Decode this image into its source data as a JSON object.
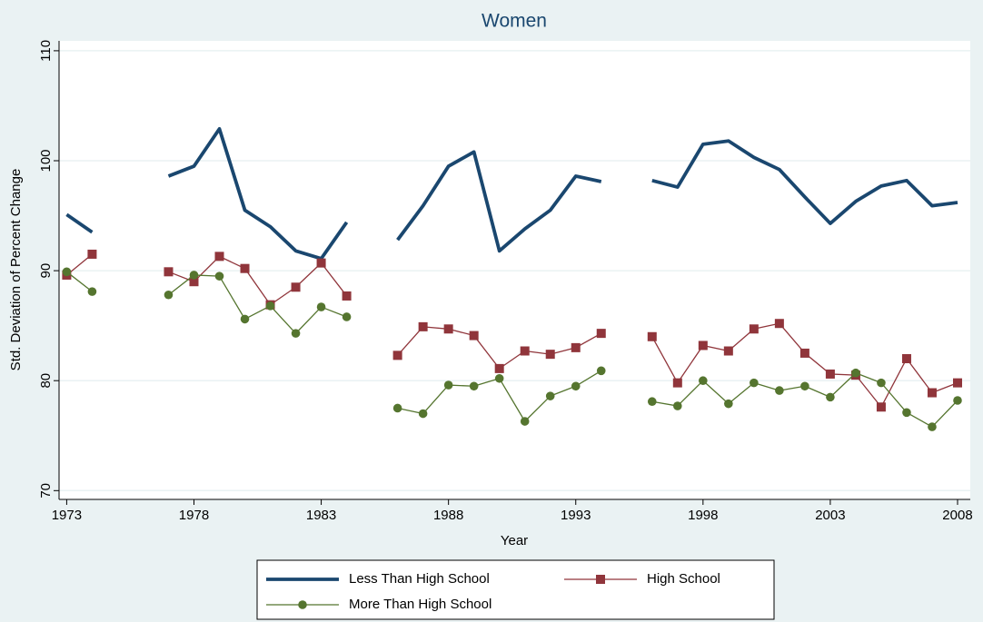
{
  "chart_data": {
    "type": "line",
    "title": "Women",
    "x_label": "Year",
    "y_label": "Std. Deviation of Percent Change",
    "x": [
      1973,
      1974,
      1975,
      1976,
      1977,
      1978,
      1979,
      1980,
      1981,
      1982,
      1983,
      1984,
      1985,
      1986,
      1987,
      1988,
      1989,
      1990,
      1991,
      1992,
      1993,
      1994,
      1995,
      1996,
      1997,
      1998,
      1999,
      2000,
      2001,
      2002,
      2003,
      2004,
      2005,
      2006,
      2007,
      2008
    ],
    "series": [
      {
        "name": "Less Than High School",
        "color": "#1a476f",
        "marker": "none",
        "values": [
          95.1,
          93.5,
          null,
          null,
          98.6,
          99.5,
          102.9,
          95.5,
          94.0,
          91.8,
          91.1,
          94.4,
          null,
          92.8,
          95.9,
          99.5,
          100.8,
          91.8,
          93.8,
          95.5,
          98.6,
          98.1,
          null,
          98.2,
          97.6,
          101.5,
          101.8,
          100.3,
          99.2,
          96.7,
          94.3,
          96.3,
          97.7,
          98.2,
          95.9,
          96.2
        ]
      },
      {
        "name": "High School",
        "color": "#90353b",
        "marker": "square",
        "values": [
          89.6,
          91.5,
          null,
          null,
          89.9,
          89.0,
          91.3,
          90.2,
          86.9,
          88.5,
          90.7,
          87.7,
          null,
          82.3,
          84.9,
          84.7,
          84.1,
          81.1,
          82.7,
          82.4,
          83.0,
          84.3,
          null,
          84.0,
          79.8,
          83.2,
          82.7,
          84.7,
          85.2,
          82.5,
          80.6,
          80.5,
          77.6,
          82.0,
          78.9,
          79.8
        ]
      },
      {
        "name": "More Than High School",
        "color": "#55752f",
        "marker": "circle",
        "values": [
          89.9,
          88.1,
          null,
          null,
          87.8,
          89.6,
          89.5,
          85.6,
          86.8,
          84.3,
          86.7,
          85.8,
          null,
          77.5,
          77.0,
          79.6,
          79.5,
          80.2,
          76.3,
          78.6,
          79.5,
          80.9,
          null,
          78.1,
          77.7,
          80.0,
          77.9,
          79.8,
          79.1,
          79.5,
          78.5,
          80.7,
          79.8,
          77.1,
          75.8,
          78.2
        ]
      }
    ],
    "xlim": [
      1972.7,
      2008.5
    ],
    "xticks": [
      1973,
      1978,
      1983,
      1988,
      1993,
      1998,
      2003,
      2008
    ],
    "ylim": [
      69.2,
      110.9
    ],
    "yticks": [
      70,
      80,
      90,
      100,
      110
    ],
    "grid": true,
    "legend": "bottom"
  }
}
